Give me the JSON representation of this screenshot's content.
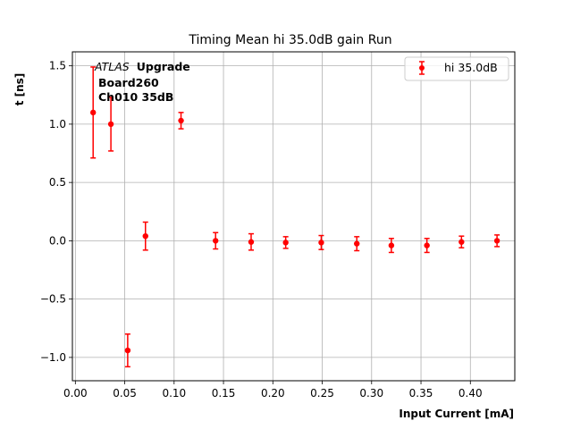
{
  "chart_data": {
    "type": "scatter",
    "title": "Timing Mean hi 35.0dB gain Run",
    "xlabel": "Input Current [mA]",
    "ylabel": "t [ns]",
    "xlim": [
      -0.003,
      0.445
    ],
    "ylim": [
      -1.2,
      1.62
    ],
    "xticks": [
      0.0,
      0.05,
      0.1,
      0.15,
      0.2,
      0.25,
      0.3,
      0.35,
      0.4
    ],
    "xtick_labels": [
      "0.00",
      "0.05",
      "0.10",
      "0.15",
      "0.20",
      "0.25",
      "0.30",
      "0.35",
      "0.40"
    ],
    "yticks": [
      -1.0,
      -0.5,
      0.0,
      0.5,
      1.0,
      1.5
    ],
    "ytick_labels": [
      "−1.0",
      "−0.5",
      "0.0",
      "0.5",
      "1.0",
      "1.5"
    ],
    "grid": true,
    "legend_position": "top-right",
    "annotation": {
      "atlas": "ATLAS",
      "upgrade": "Upgrade",
      "board": "Board260",
      "channel": "Ch010 35dB"
    },
    "series": [
      {
        "name": "hi 35.0dB",
        "color": "#ff0000",
        "x": [
          0.018,
          0.036,
          0.053,
          0.071,
          0.107,
          0.142,
          0.178,
          0.213,
          0.249,
          0.285,
          0.32,
          0.356,
          0.391,
          0.427
        ],
        "y": [
          1.1,
          1.0,
          -0.94,
          0.04,
          1.03,
          0.0,
          -0.01,
          -0.015,
          -0.015,
          -0.025,
          -0.04,
          -0.04,
          -0.01,
          0.0
        ],
        "yerr": [
          0.39,
          0.23,
          0.14,
          0.12,
          0.07,
          0.07,
          0.07,
          0.05,
          0.06,
          0.06,
          0.06,
          0.06,
          0.05,
          0.05
        ]
      }
    ]
  }
}
